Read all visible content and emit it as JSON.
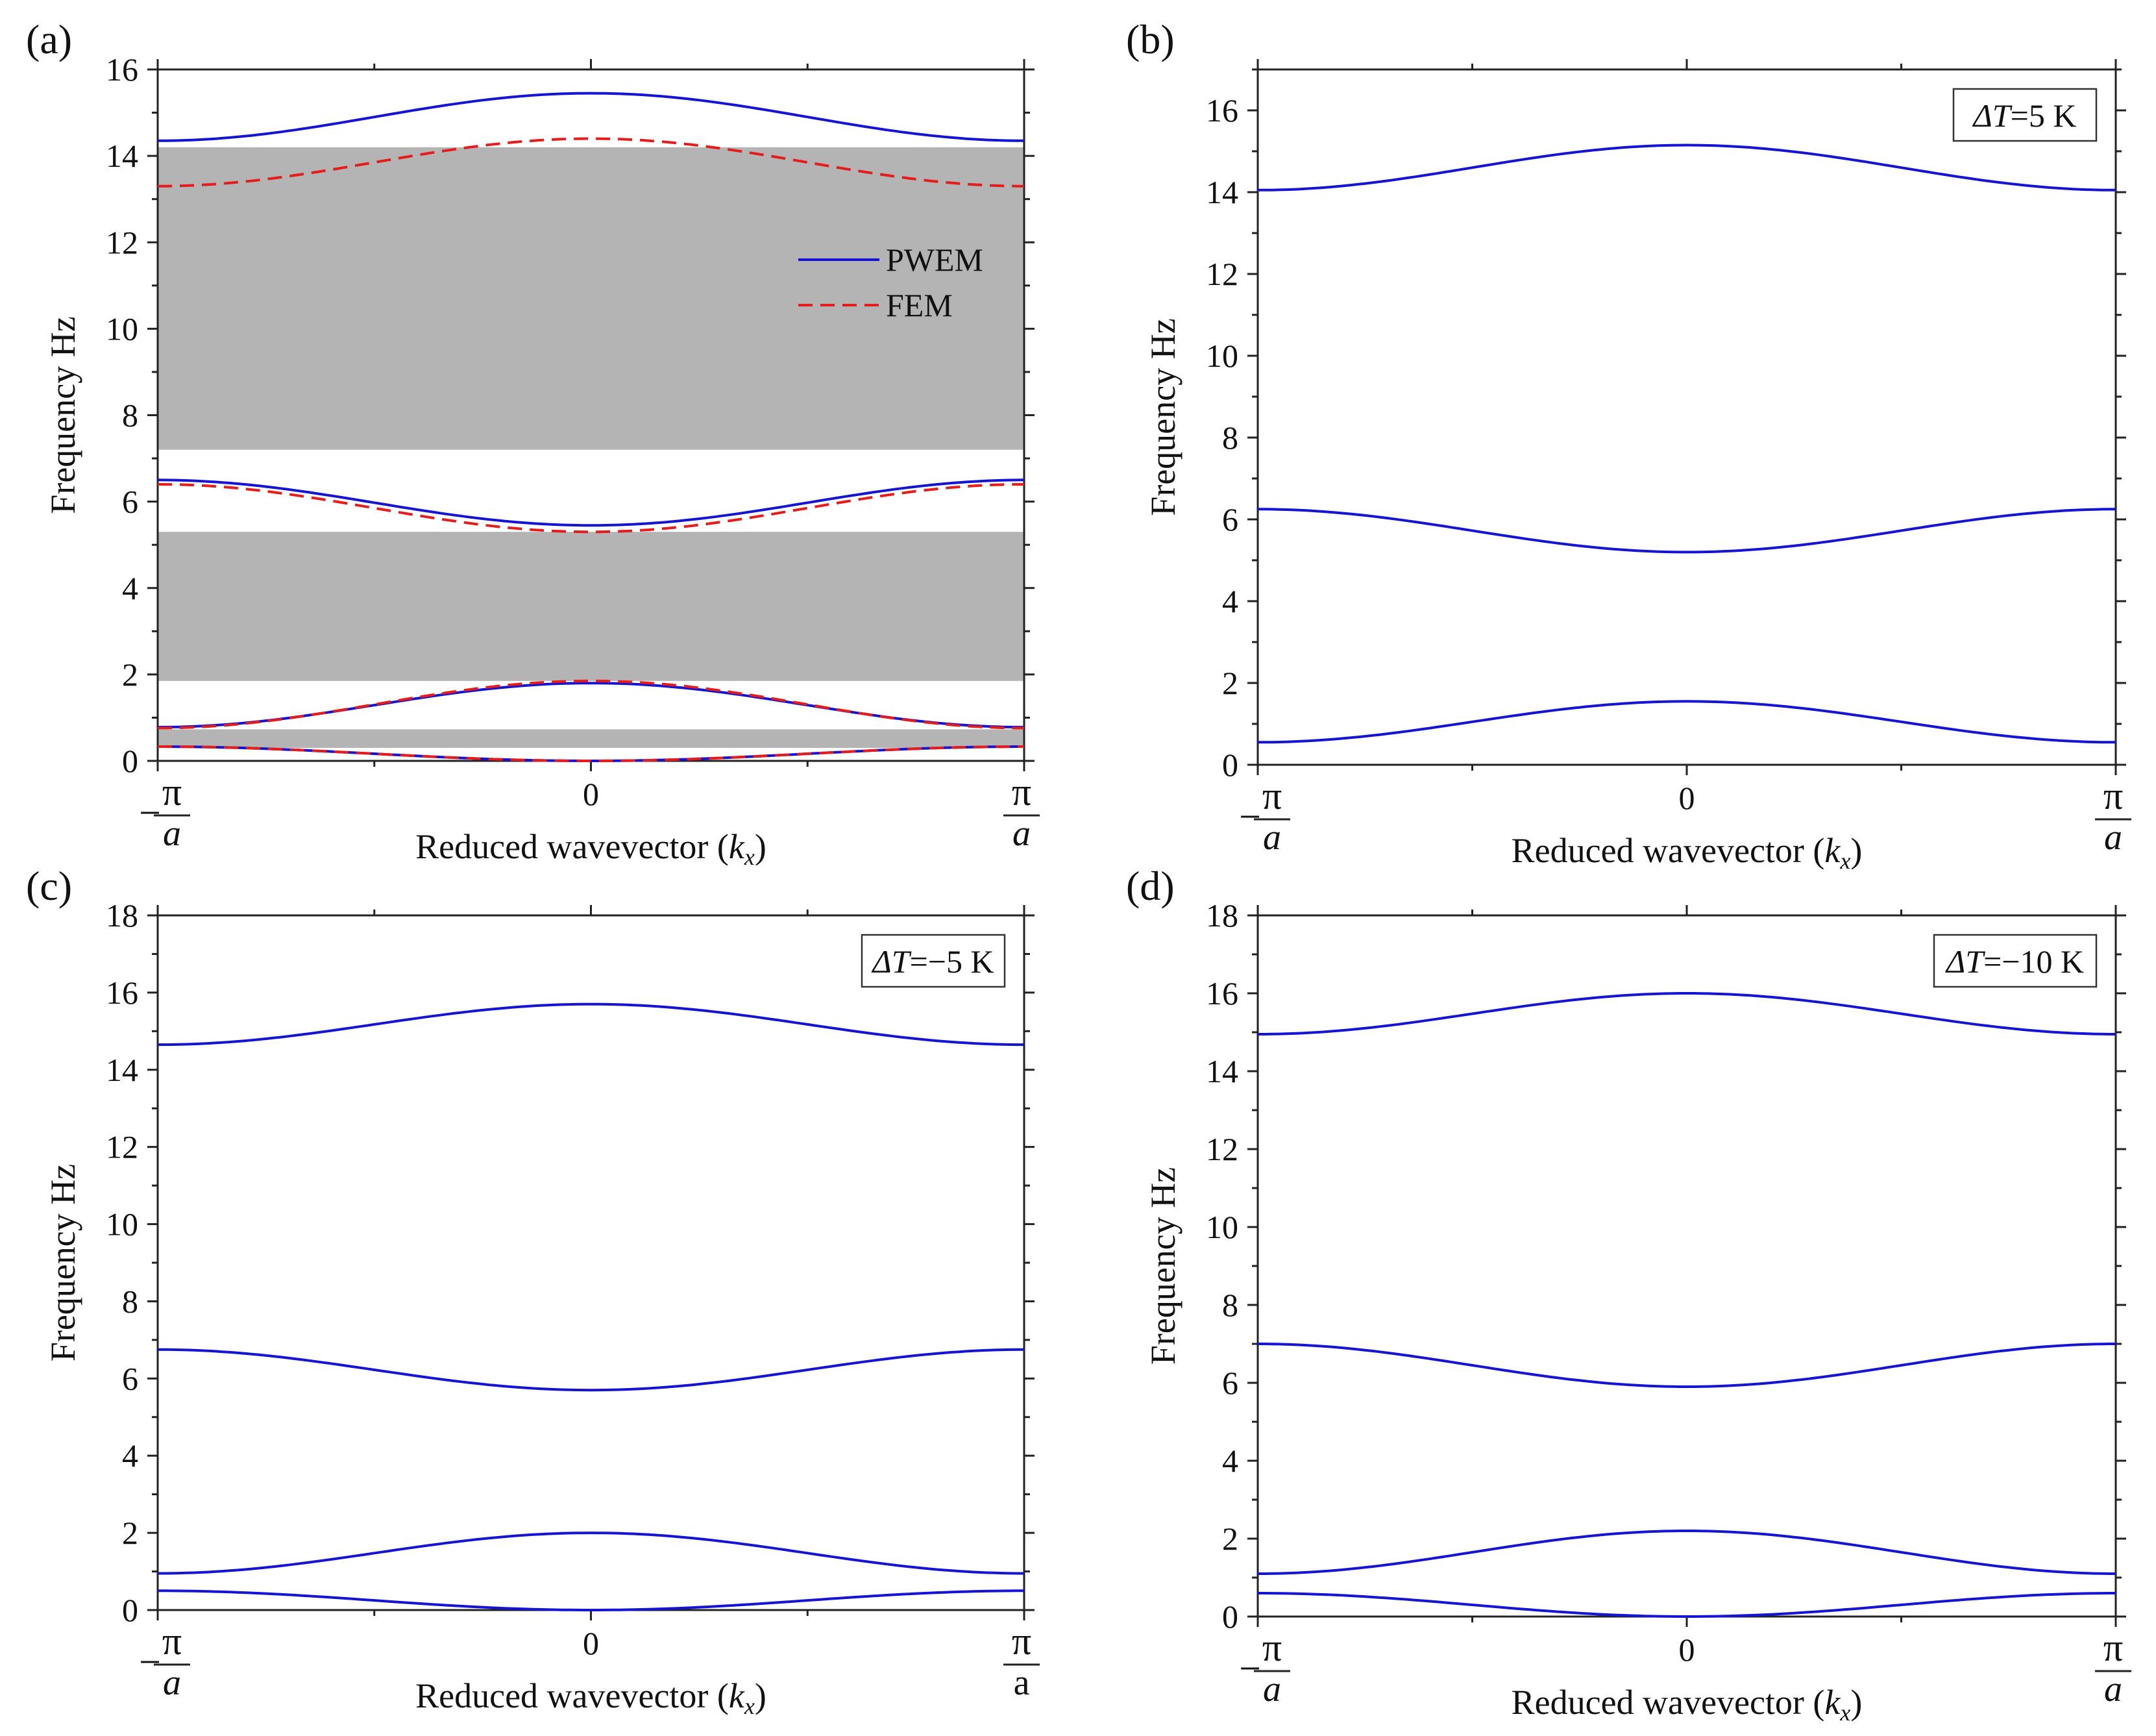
{
  "chart_data": [
    {
      "type": "line",
      "panel_label": "(a)",
      "xlabel": "Reduced wavevector (k_x)",
      "xlabel_main": "Reduced wavevector (",
      "xlabel_k": "k",
      "xlabel_sub": "x",
      "xlabel_close": ")",
      "ylabel": "Frequency Hz",
      "xlim": [
        -1,
        1
      ],
      "ylim": [
        0,
        16
      ],
      "yticks": [
        "0",
        "2",
        "4",
        "6",
        "8",
        "10",
        "12",
        "14",
        "16"
      ],
      "x_tick_labels": {
        "left_sign": "−",
        "left_num": "π",
        "left_den": "a",
        "mid": "0",
        "right_num": "π",
        "right_den": "a"
      },
      "bandgaps": [
        [
          0.3,
          0.73
        ],
        [
          1.85,
          5.3
        ],
        [
          7.2,
          14.2
        ]
      ],
      "bandgap_color": "#b4b4b4",
      "legend": {
        "position": "right-middle",
        "entries": [
          {
            "label": "PWEM",
            "color": "#1414d2",
            "style": "solid"
          },
          {
            "label": "FEM",
            "color": "#e51c1c",
            "style": "dashed"
          }
        ]
      },
      "series": [
        {
          "name": "PWEM",
          "color": "#1414d2",
          "style": "solid",
          "bands": [
            [
              0.33,
              0.0
            ],
            [
              0.78,
              1.8
            ],
            [
              6.5,
              5.45
            ],
            [
              14.35,
              15.45
            ]
          ]
        },
        {
          "name": "FEM",
          "color": "#e51c1c",
          "style": "dashed",
          "bands": [
            [
              0.33,
              0.0
            ],
            [
              0.76,
              1.85
            ],
            [
              6.4,
              5.3
            ],
            [
              13.3,
              14.4
            ]
          ]
        }
      ]
    },
    {
      "type": "line",
      "panel_label": "(b)",
      "annotation": {
        "prefix": "ΔT",
        "suffix": "=5 K",
        "position": "top-right"
      },
      "xlabel": "Reduced wavevector (k_x)",
      "xlabel_main": "Reduced wavevector (",
      "xlabel_k": "k",
      "xlabel_sub": "x",
      "xlabel_close": ")",
      "ylabel": "Frequency Hz",
      "xlim": [
        -1,
        1
      ],
      "ylim": [
        0,
        17
      ],
      "yticks": [
        "0",
        "2",
        "4",
        "6",
        "8",
        "10",
        "12",
        "14",
        "16"
      ],
      "x_tick_labels": {
        "left_sign": "−",
        "left_num": "π",
        "left_den": "a",
        "mid": "0",
        "right_num": "π",
        "right_den": "a"
      },
      "series": [
        {
          "color": "#1414d2",
          "style": "solid",
          "bands": [
            [
              0.55,
              1.55
            ],
            [
              6.25,
              5.2
            ],
            [
              14.05,
              15.15
            ]
          ]
        }
      ]
    },
    {
      "type": "line",
      "panel_label": "(c)",
      "annotation": {
        "prefix": "ΔT",
        "suffix": "=−5 K",
        "position": "top-right"
      },
      "xlabel": "Reduced wavevector (k_x)",
      "xlabel_main": "Reduced wavevector (",
      "xlabel_k": "k",
      "xlabel_sub": "x",
      "xlabel_close": ")",
      "ylabel": "Frequency Hz",
      "xlim": [
        -1,
        1
      ],
      "ylim": [
        0,
        18
      ],
      "yticks": [
        "0",
        "2",
        "4",
        "6",
        "8",
        "10",
        "12",
        "14",
        "16",
        "18"
      ],
      "x_tick_labels": {
        "left_sign": "−",
        "left_num": "π",
        "left_den": "a",
        "mid": "0",
        "right_num": "π",
        "right_den": "a",
        "right_den_upright": true
      },
      "series": [
        {
          "color": "#1414d2",
          "style": "solid",
          "bands": [
            [
              0.5,
              0.0
            ],
            [
              0.95,
              2.0
            ],
            [
              6.75,
              5.7
            ],
            [
              14.65,
              15.7
            ]
          ]
        }
      ]
    },
    {
      "type": "line",
      "panel_label": "(d)",
      "annotation": {
        "prefix": "ΔT",
        "suffix": "=−10 K",
        "position": "top-right"
      },
      "xlabel": "Reduced wavevector (k_x)",
      "xlabel_main": "Reduced wavevector (",
      "xlabel_k": "k",
      "xlabel_sub": "x",
      "xlabel_close": ")",
      "ylabel": "Frequency Hz",
      "xlim": [
        -1,
        1
      ],
      "ylim": [
        0,
        18
      ],
      "yticks": [
        "0",
        "2",
        "4",
        "6",
        "8",
        "10",
        "12",
        "14",
        "16",
        "18"
      ],
      "x_tick_labels": {
        "left_sign": "−",
        "left_num": "π",
        "left_den": "a",
        "mid": "0",
        "right_num": "π",
        "right_den": "a"
      },
      "series": [
        {
          "color": "#1414d2",
          "style": "solid",
          "bands": [
            [
              0.6,
              0.0
            ],
            [
              1.1,
              2.2
            ],
            [
              7.0,
              5.9
            ],
            [
              14.95,
              16.0
            ]
          ]
        }
      ]
    }
  ]
}
